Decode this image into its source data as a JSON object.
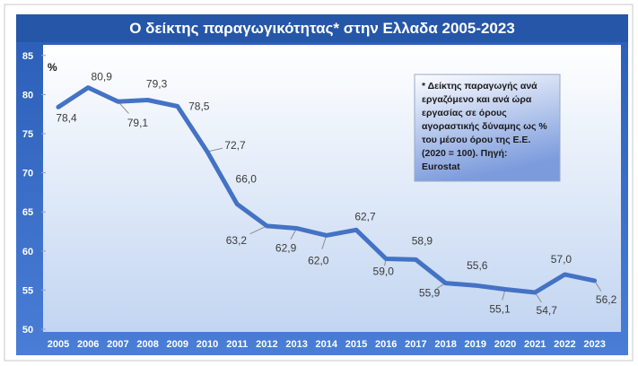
{
  "colors": {
    "frame_top": "#2A5DB5",
    "frame_bottom": "#4A7ED6",
    "title_band": "#2556A8",
    "plot_top": "#FFFFFF",
    "plot_bottom": "#C2D5F1",
    "line": "#4472C4",
    "note_top": "#FBFCFF",
    "note_bottom": "#7C9BDD"
  },
  "chart_data": {
    "type": "line",
    "title": "Ο δείκτης παραγωγικότητας* στην Ελλαδα 2005-2023",
    "ylabel": "%",
    "x": [
      "2005",
      "2006",
      "2007",
      "2008",
      "2009",
      "2010",
      "2011",
      "2012",
      "2013",
      "2014",
      "2015",
      "2016",
      "2017",
      "2018",
      "2019",
      "2020",
      "2021",
      "2022",
      "2023"
    ],
    "series": [
      {
        "values": [
          78.4,
          80.9,
          79.1,
          79.3,
          78.5,
          72.7,
          66.0,
          63.2,
          62.9,
          62.0,
          62.7,
          59.0,
          58.9,
          55.9,
          55.6,
          55.1,
          54.7,
          57.0,
          56.2
        ],
        "data_labels": [
          "78,4",
          "80,9",
          "79,1",
          "79,3",
          "78,5",
          "72,7",
          "66,0",
          "63,2",
          "62,9",
          "62,0",
          "62,7",
          "59,0",
          "58,9",
          "55,9",
          "55,6",
          "55,1",
          "54,7",
          "57,0",
          "56,2"
        ]
      }
    ],
    "ylim": [
      50,
      85
    ],
    "yticks": [
      "85",
      "80",
      "75",
      "70",
      "65",
      "60",
      "55",
      "50"
    ],
    "grid": false,
    "annotation": [
      "* Δείκτης παραγωγής ανά",
      "εργαζόμενο και ανά ώρα",
      "εργασίας σε όρους",
      "αγοραστικής δύναμης ως %",
      "του μέσου όρου της Ε.Ε.",
      "(2020 = 100). Πηγή:",
      "Eurostat"
    ]
  }
}
